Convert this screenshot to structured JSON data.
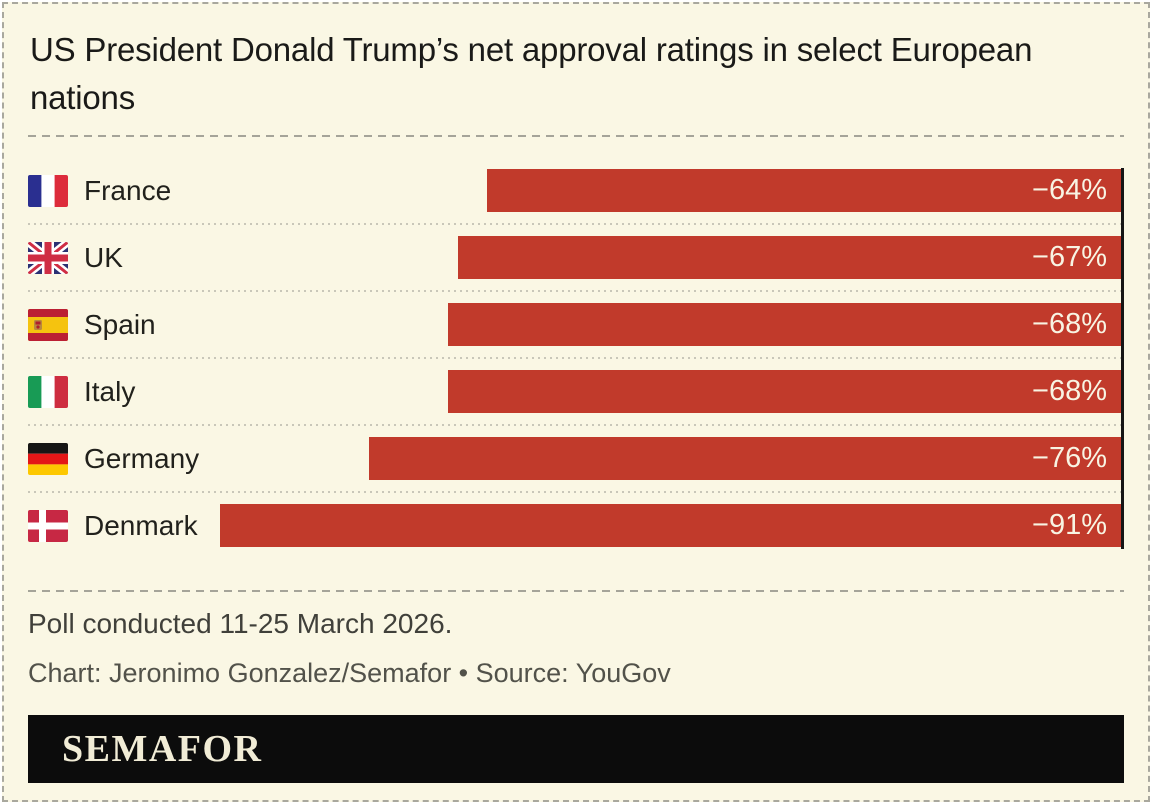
{
  "header": {
    "title": "US President Donald Trump’s net approval ratings in select European nations"
  },
  "chart_data": {
    "type": "bar",
    "orientation": "horizontal",
    "title": "US President Donald Trump’s net approval ratings in select European nations",
    "categories": [
      "France",
      "UK",
      "Spain",
      "Italy",
      "Germany",
      "Denmark"
    ],
    "values": [
      -64,
      -67,
      -68,
      -68,
      -76,
      -91
    ],
    "value_labels": [
      "−64%",
      "−67%",
      "−68%",
      "−68%",
      "−76%",
      "−91%"
    ],
    "xlim": [
      -91,
      0
    ],
    "bar_anchor": "right",
    "value_label_position": "inside-end",
    "grid": "dotted-row-separators",
    "rows": [
      {
        "country": "France",
        "flag_icon": "france-flag-icon",
        "value": -64,
        "label": "−64%"
      },
      {
        "country": "UK",
        "flag_icon": "uk-flag-icon",
        "value": -67,
        "label": "−67%"
      },
      {
        "country": "Spain",
        "flag_icon": "spain-flag-icon",
        "value": -68,
        "label": "−68%"
      },
      {
        "country": "Italy",
        "flag_icon": "italy-flag-icon",
        "value": -68,
        "label": "−68%"
      },
      {
        "country": "Germany",
        "flag_icon": "germany-flag-icon",
        "value": -76,
        "label": "−76%"
      },
      {
        "country": "Denmark",
        "flag_icon": "denmark-flag-icon",
        "value": -91,
        "label": "−91%"
      }
    ]
  },
  "footer": {
    "note": "Poll conducted 11-25 March 2026.",
    "credit": "Chart: Jeronimo Gonzalez/Semafor • Source: YouGov"
  },
  "logo": {
    "text": "SEMAFOR"
  },
  "colors": {
    "background": "#faf7e4",
    "bar": "#c13a2b",
    "value_text": "#f8f4e3",
    "axis_line": "#151515",
    "logo_bar": "#0c0c0c",
    "logo_text": "#f1ecd6"
  }
}
